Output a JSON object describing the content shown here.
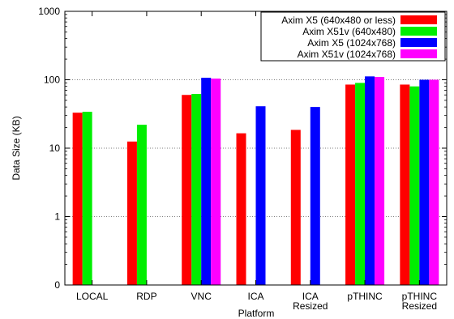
{
  "chart_data": {
    "type": "bar",
    "xlabel": "Platform",
    "ylabel": "Data Size (KB)",
    "yscale": "log",
    "ylim": [
      0.1,
      1000
    ],
    "y_ticks": [
      {
        "value": 0.1,
        "label": "0"
      },
      {
        "value": 1,
        "label": "1"
      },
      {
        "value": 10,
        "label": "10"
      },
      {
        "value": 100,
        "label": "100"
      },
      {
        "value": 1000,
        "label": "1000"
      }
    ],
    "grid": "horizontal, dotted",
    "legend_position": "top-right",
    "categories": [
      [
        "LOCAL"
      ],
      [
        "RDP"
      ],
      [
        "VNC"
      ],
      [
        "ICA"
      ],
      [
        "ICA",
        "Resized"
      ],
      [
        "pTHINC"
      ],
      [
        "pTHINC",
        "Resized"
      ]
    ],
    "series": [
      {
        "name": "Axim X5 (640x480 or less)",
        "color": "#ff0000",
        "values": [
          33,
          12.5,
          60,
          16.5,
          18.5,
          85,
          85
        ]
      },
      {
        "name": "Axim X51v (640x480)",
        "color": "#00ee00",
        "values": [
          34,
          22,
          62,
          null,
          null,
          90,
          80
        ]
      },
      {
        "name": "Axim X5 (1024x768)",
        "color": "#0000ff",
        "values": [
          null,
          null,
          107,
          41,
          40,
          112,
          100
        ]
      },
      {
        "name": "Axim X51v (1024x768)",
        "color": "#ff00ff",
        "values": [
          null,
          null,
          104,
          null,
          null,
          110,
          100
        ]
      }
    ]
  }
}
